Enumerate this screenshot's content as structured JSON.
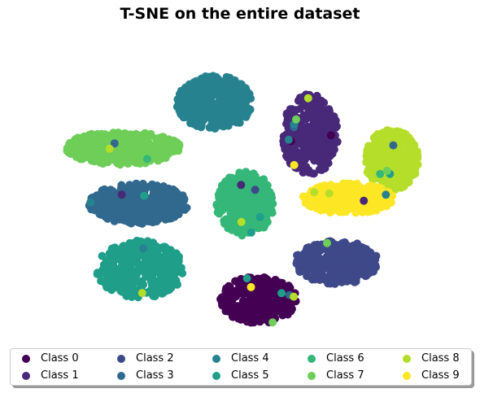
{
  "chart_data": {
    "type": "scatter",
    "title": "T-SNE on the entire dataset",
    "xlabel": "",
    "ylabel": "",
    "axes_visible": false,
    "xlim": [
      -100,
      100
    ],
    "ylim": [
      -85,
      85
    ],
    "legend": {
      "placement": "bottom",
      "columns": 5,
      "shadow": true
    },
    "series": [
      {
        "name": "Class 0",
        "color": "#440154",
        "centroid": [
          5,
          -60
        ],
        "spread": [
          20,
          14
        ]
      },
      {
        "name": "Class 1",
        "color": "#482878",
        "centroid": [
          32,
          38
        ],
        "spread": [
          15,
          24
        ]
      },
      {
        "name": "Class 2",
        "color": "#3e4989",
        "centroid": [
          46,
          -38
        ],
        "spread": [
          22,
          13
        ]
      },
      {
        "name": "Class 3",
        "color": "#31688e",
        "centroid": [
          -58,
          -3
        ],
        "spread": [
          26,
          12
        ]
      },
      {
        "name": "Class 4",
        "color": "#26828e",
        "centroid": [
          -18,
          57
        ],
        "spread": [
          20,
          16
        ]
      },
      {
        "name": "Class 5",
        "color": "#1f9e89",
        "centroid": [
          -57,
          -42
        ],
        "spread": [
          23,
          17
        ]
      },
      {
        "name": "Class 6",
        "color": "#35b779",
        "centroid": [
          -2,
          -3
        ],
        "spread": [
          15,
          19
        ]
      },
      {
        "name": "Class 7",
        "color": "#6ece58",
        "centroid": [
          -66,
          30
        ],
        "spread": [
          30,
          10
        ]
      },
      {
        "name": "Class 8",
        "color": "#b5de2b",
        "centroid": [
          75,
          23
        ],
        "spread": [
          14,
          18
        ]
      },
      {
        "name": "Class 9",
        "color": "#fde725",
        "centroid": [
          52,
          0
        ],
        "spread": [
          24,
          9
        ]
      }
    ]
  }
}
